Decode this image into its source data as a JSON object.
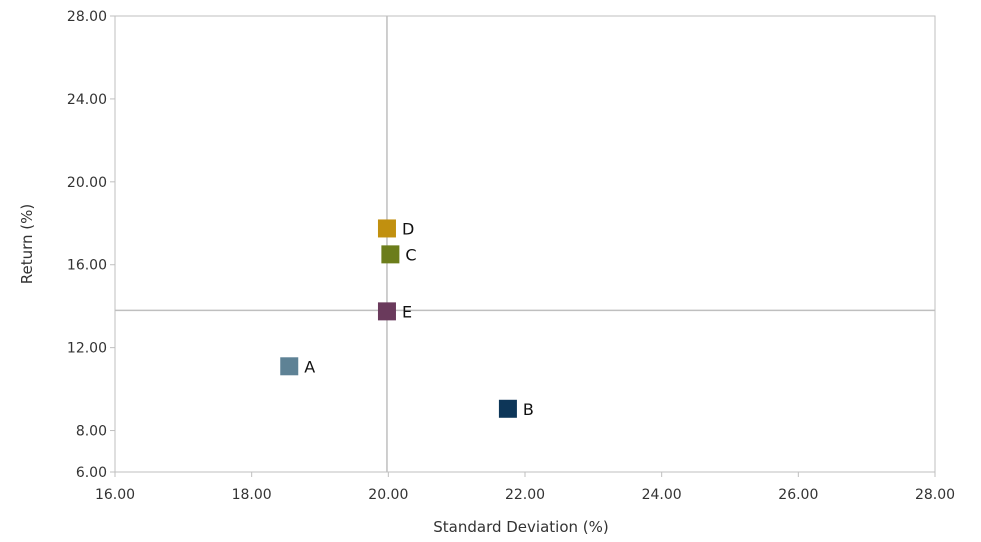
{
  "chart_data": {
    "type": "scatter",
    "xlabel": "Standard Deviation (%)",
    "ylabel": "Return (%)",
    "xlim": [
      16,
      28
    ],
    "ylim": [
      6,
      28
    ],
    "x_ticks": [
      "16.00",
      "18.00",
      "20.00",
      "22.00",
      "24.00",
      "26.00",
      "28.00"
    ],
    "y_ticks": [
      "6.00",
      "8.00",
      "12.00",
      "16.00",
      "20.00",
      "24.00",
      "28.00"
    ],
    "reference_lines": {
      "x": 19.98,
      "y": 13.8
    },
    "grid": false,
    "legend": "none",
    "points": [
      {
        "label": "A",
        "x": 18.55,
        "y": 11.1,
        "color": "#5e8295"
      },
      {
        "label": "B",
        "x": 21.75,
        "y": 9.05,
        "color": "#0d3658"
      },
      {
        "label": "C",
        "x": 20.03,
        "y": 16.5,
        "color": "#6c7d1b"
      },
      {
        "label": "D",
        "x": 19.98,
        "y": 17.75,
        "color": "#c1900f"
      },
      {
        "label": "E",
        "x": 19.98,
        "y": 13.75,
        "color": "#6a3a5c"
      }
    ]
  }
}
